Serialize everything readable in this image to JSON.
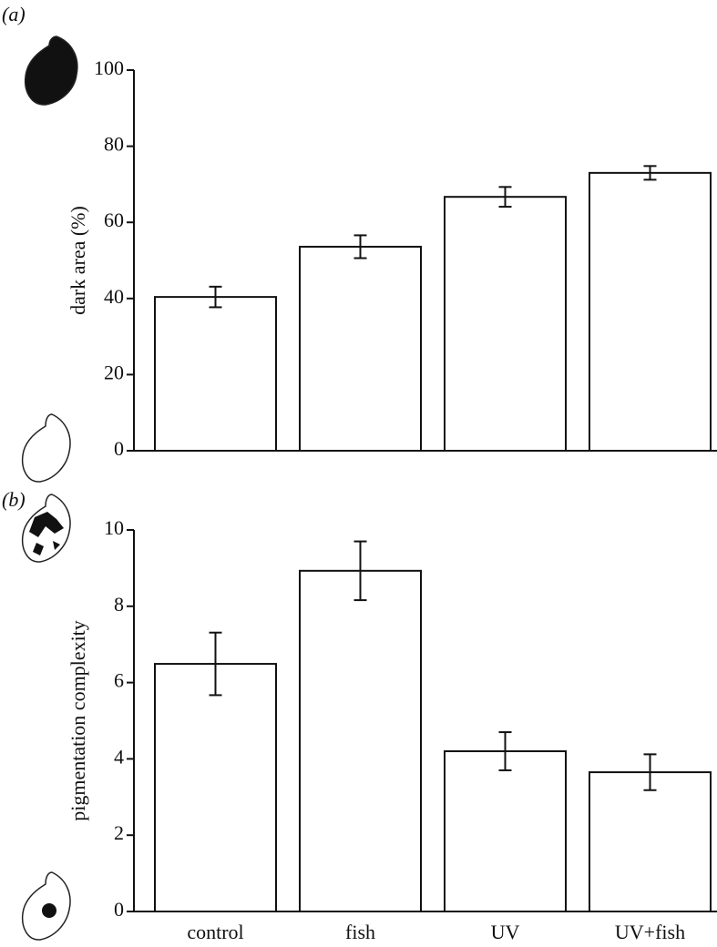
{
  "chart_data": [
    {
      "type": "bar",
      "panel_label": "(a)",
      "y_label": "dark area (%)",
      "categories": [
        null,
        null,
        null,
        null
      ],
      "values": [
        40.4,
        53.6,
        66.7,
        73.0
      ],
      "errors": [
        2.7,
        3.0,
        2.6,
        1.8
      ],
      "color": "#ffffff",
      "ylim": [
        0,
        100
      ],
      "yticks": [
        0,
        20,
        40,
        60,
        80,
        100
      ]
    },
    {
      "type": "bar",
      "panel_label": "(b)",
      "y_label": "pigmentation complexity",
      "categories": [
        "control",
        "fish",
        "UV",
        "UV+fish"
      ],
      "values": [
        6.49,
        8.93,
        4.2,
        3.65
      ],
      "errors": [
        0.82,
        0.77,
        0.5,
        0.47
      ],
      "color": "#ffffff",
      "ylim": [
        0,
        10
      ],
      "yticks": [
        0,
        2,
        4,
        6,
        8,
        10
      ]
    }
  ]
}
